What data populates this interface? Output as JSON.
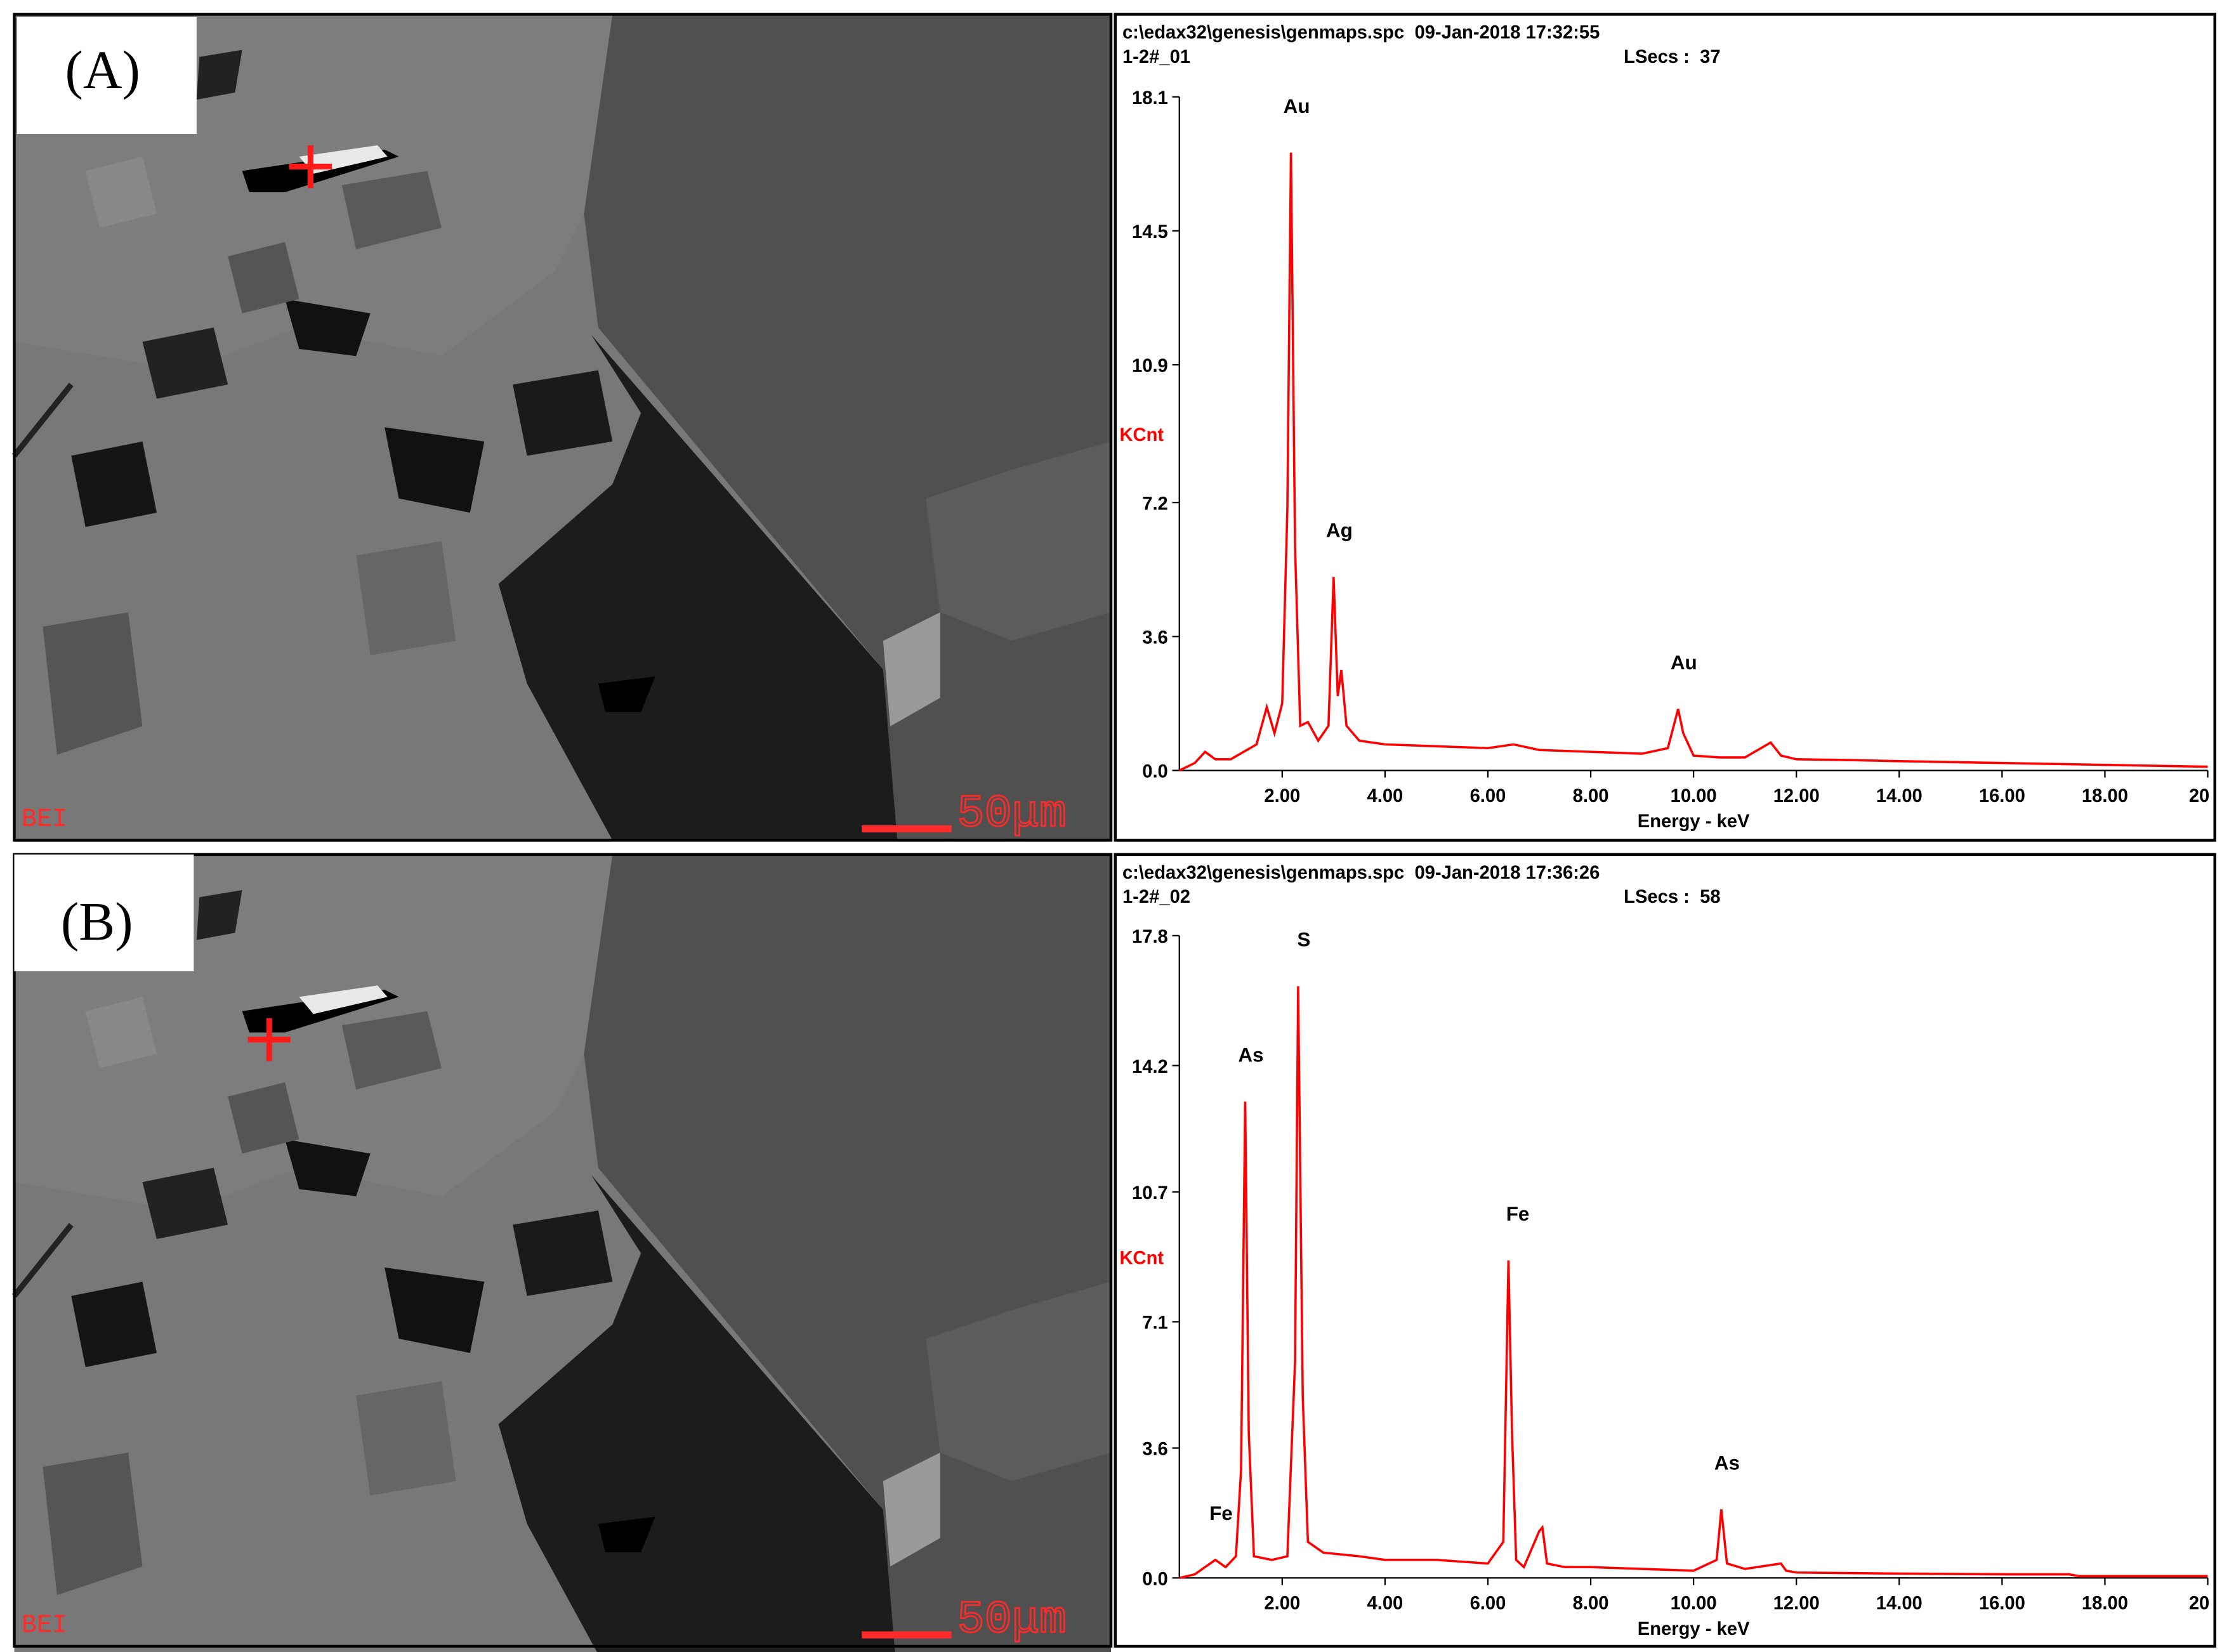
{
  "panels": [
    {
      "label": "(A)",
      "detector": "BEI",
      "scale": "50μm"
    },
    {
      "label": "(B)",
      "detector": "BEI",
      "scale": "50μm"
    }
  ],
  "chart_data": [
    {
      "type": "line",
      "header": [
        "c:\\edax32\\genesis\\genmaps.spc  09-Jan-2018 17:32:55",
        "1-2#_01",
        "LSecs :  37"
      ],
      "ylabel": "KCnt",
      "xlabel": "Energy - keV",
      "color": "#ff0000",
      "xlim": [
        0,
        20
      ],
      "ylim": [
        0,
        18.1
      ],
      "xticks": [
        {
          "value": 2,
          "label": "2.00"
        },
        {
          "value": 4,
          "label": "4.00"
        },
        {
          "value": 6,
          "label": "6.00"
        },
        {
          "value": 8,
          "label": "8.00"
        },
        {
          "value": 10,
          "label": "10.00"
        },
        {
          "value": 12,
          "label": "12.00"
        },
        {
          "value": 14,
          "label": "14.00"
        },
        {
          "value": 16,
          "label": "16.00"
        },
        {
          "value": 18,
          "label": "18.00"
        },
        20
      ],
      "yticks": [
        {
          "value": 0,
          "label": "0.0"
        },
        3.6,
        7.2,
        10.9,
        14.5,
        18.1
      ],
      "x": [
        0,
        0.3,
        0.5,
        0.7,
        1.0,
        1.5,
        1.7,
        1.85,
        2.0,
        2.1,
        2.17,
        2.25,
        2.35,
        2.5,
        2.7,
        2.9,
        3.0,
        3.08,
        3.15,
        3.25,
        3.5,
        4,
        5,
        6,
        6.5,
        7,
        8,
        9,
        9.5,
        9.7,
        9.8,
        10.0,
        10.5,
        11,
        11.5,
        11.7,
        12,
        13,
        14,
        16,
        18,
        20
      ],
      "values": [
        0,
        0.2,
        0.5,
        0.3,
        0.3,
        0.7,
        1.7,
        1.0,
        1.8,
        7,
        16.6,
        6,
        1.2,
        1.3,
        0.8,
        1.2,
        5.2,
        2.0,
        2.7,
        1.2,
        0.8,
        0.7,
        0.65,
        0.6,
        0.7,
        0.55,
        0.5,
        0.45,
        0.6,
        1.65,
        1.0,
        0.4,
        0.35,
        0.35,
        0.75,
        0.4,
        0.3,
        0.28,
        0.25,
        0.2,
        0.15,
        0.1
      ],
      "annotations": [
        {
          "text": "Au",
          "x": 2.17,
          "y": 16.6
        },
        {
          "text": "Ag",
          "x": 3.0,
          "y": 5.2
        },
        {
          "text": "Au",
          "x": 9.7,
          "y": 1.65
        }
      ]
    },
    {
      "type": "line",
      "header": [
        "c:\\edax32\\genesis\\genmaps.spc  09-Jan-2018 17:36:26",
        "1-2#_02",
        "LSecs :  58"
      ],
      "ylabel": "KCnt",
      "xlabel": "Energy - keV",
      "color": "#ff0000",
      "xlim": [
        0,
        20
      ],
      "ylim": [
        0,
        17.8
      ],
      "xticks": [
        {
          "value": 2,
          "label": "2.00"
        },
        {
          "value": 4,
          "label": "4.00"
        },
        {
          "value": 6,
          "label": "6.00"
        },
        {
          "value": 8,
          "label": "8.00"
        },
        {
          "value": 10,
          "label": "10.00"
        },
        {
          "value": 12,
          "label": "12.00"
        },
        {
          "value": 14,
          "label": "14.00"
        },
        {
          "value": 16,
          "label": "16.00"
        },
        {
          "value": 18,
          "label": "18.00"
        },
        20
      ],
      "yticks": [
        {
          "value": 0,
          "label": "0.0"
        },
        3.6,
        7.1,
        10.7,
        14.2,
        17.8
      ],
      "x": [
        0,
        0.3,
        0.6,
        0.7,
        0.9,
        1.1,
        1.2,
        1.28,
        1.35,
        1.45,
        1.8,
        2.1,
        2.25,
        2.31,
        2.4,
        2.5,
        2.8,
        3.5,
        4,
        5,
        6,
        6.3,
        6.4,
        6.47,
        6.55,
        6.7,
        7.0,
        7.06,
        7.15,
        7.5,
        8,
        9,
        10,
        10.45,
        10.54,
        10.65,
        11,
        11.7,
        11.8,
        12,
        14,
        16,
        17.3,
        17.5,
        18,
        20
      ],
      "values": [
        0,
        0.1,
        0.4,
        0.5,
        0.3,
        0.6,
        3,
        13.2,
        4,
        0.6,
        0.5,
        0.6,
        6,
        16.4,
        5,
        1,
        0.7,
        0.6,
        0.5,
        0.5,
        0.4,
        1,
        8.8,
        4,
        0.5,
        0.3,
        1.3,
        1.4,
        0.4,
        0.3,
        0.3,
        0.25,
        0.2,
        0.5,
        1.9,
        0.4,
        0.25,
        0.4,
        0.2,
        0.15,
        0.12,
        0.1,
        0.1,
        0.05,
        0.05,
        0.05
      ],
      "annotations": [
        {
          "text": "Fe",
          "x": 0.7,
          "y": 0.5
        },
        {
          "text": "As",
          "x": 1.28,
          "y": 13.2
        },
        {
          "text": "S",
          "x": 2.31,
          "y": 16.4
        },
        {
          "text": "Fe",
          "x": 6.47,
          "y": 8.8
        },
        {
          "text": "As",
          "x": 10.54,
          "y": 1.9
        }
      ]
    }
  ]
}
